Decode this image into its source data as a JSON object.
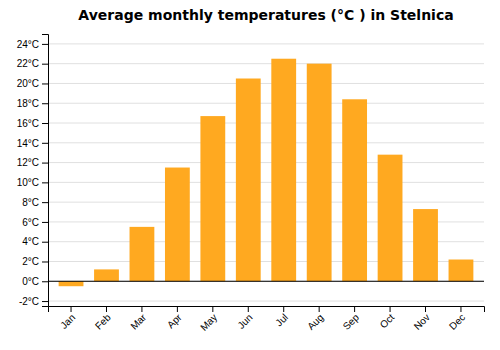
{
  "chart_data": {
    "type": "bar",
    "title": "Average monthly temperatures (°C ) in Stelnica",
    "categories": [
      "Jan",
      "Feb",
      "Mar",
      "Apr",
      "May",
      "Jun",
      "Jul",
      "Aug",
      "Sep",
      "Oct",
      "Nov",
      "Dec"
    ],
    "values": [
      -0.5,
      1.2,
      5.5,
      11.5,
      16.7,
      20.5,
      22.5,
      22.0,
      18.4,
      12.8,
      7.3,
      2.2
    ],
    "color": "#FFA920",
    "ylim": [
      -2.5,
      25
    ],
    "yticks": [
      {
        "value": -2,
        "label": "-2°C"
      },
      {
        "value": 0,
        "label": "0°C"
      },
      {
        "value": 2,
        "label": "2°C"
      },
      {
        "value": 4,
        "label": "4°C"
      },
      {
        "value": 6,
        "label": "6°C"
      },
      {
        "value": 8,
        "label": "8°C"
      },
      {
        "value": 10,
        "label": "10°C"
      },
      {
        "value": 12,
        "label": "12°C"
      },
      {
        "value": 14,
        "label": "14°C"
      },
      {
        "value": 16,
        "label": "16°C"
      },
      {
        "value": 18,
        "label": "18°C"
      },
      {
        "value": 20,
        "label": "20°C"
      },
      {
        "value": 22,
        "label": "22°C"
      },
      {
        "value": 24,
        "label": "24°C"
      }
    ],
    "grid": true
  }
}
